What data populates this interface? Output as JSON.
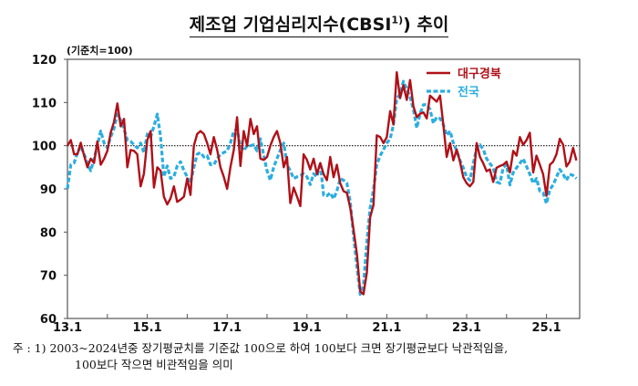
{
  "chart_data": {
    "type": "line",
    "title_main": "제조업 기업심리지수(CBSI",
    "title_sup": "1)",
    "title_close": ")",
    "title_tail": " 추이",
    "unit_label": "(기준치=100)",
    "ylim": [
      60,
      120
    ],
    "yticks": [
      "60",
      "70",
      "80",
      "90",
      "100",
      "110",
      "120"
    ],
    "xticks": [
      "13.1",
      "15.1",
      "17.1",
      "19.1",
      "21.1",
      "23.1",
      "25.1"
    ],
    "x_start": "2013.1",
    "x_end": "2025.10",
    "reference_line": 100,
    "legend_position": "top-right",
    "series": [
      {
        "name": "대구경북",
        "color": "#b01018",
        "style": "solid",
        "values": [
          100,
          101.3,
          98,
          98,
          100.7,
          97.7,
          95,
          97,
          96,
          101,
          95.6,
          97,
          98.8,
          103,
          105.5,
          109.8,
          104.5,
          106.2,
          95,
          99,
          98.8,
          98,
          90.6,
          93.5,
          101.3,
          103.4,
          90.3,
          95,
          94.2,
          88.2,
          86.4,
          87.8,
          90.6,
          87,
          87.5,
          88.2,
          92.4,
          88.6,
          100,
          102.7,
          103.4,
          102.7,
          100.6,
          98,
          102,
          99,
          95,
          92.8,
          90,
          95,
          99,
          106.6,
          95.3,
          103.4,
          100,
          106.2,
          102.7,
          104.5,
          97,
          96.7,
          97.4,
          100,
          102,
          103.4,
          100.6,
          95,
          97.4,
          86.7,
          90.3,
          88.2,
          86,
          98,
          96.7,
          94.5,
          97,
          93.4,
          96,
          93.4,
          92,
          97.4,
          92.7,
          95.6,
          91.3,
          89.5,
          89.1,
          85.6,
          80.6,
          74.9,
          66.3,
          65.6,
          70.6,
          83.4,
          86.3,
          102.4,
          102,
          100.6,
          102,
          108,
          104.9,
          117,
          111,
          114,
          110.6,
          115.2,
          109.1,
          106.6,
          107.4,
          107.7,
          106.3,
          111.6,
          110.9,
          110.2,
          111.6,
          104.9,
          97.4,
          100.6,
          96.6,
          99.1,
          96.3,
          92.7,
          91.3,
          90.6,
          91.6,
          100.6,
          97.4,
          95.9,
          94.1,
          94.5,
          91.6,
          94.9,
          95.3,
          95.6,
          96.3,
          93.8,
          98.8,
          97.7,
          102,
          100.2,
          101.3,
          103,
          93.8,
          97.7,
          95.6,
          93.4,
          88.4,
          95.6,
          96.3,
          98,
          101.6,
          100.2,
          95.2,
          96.3,
          99.5,
          96.6
        ]
      },
      {
        "name": "전국",
        "color": "#2aaee0",
        "style": "dashed",
        "values": [
          90,
          95.6,
          96,
          98.4,
          99.9,
          98,
          96,
          94.2,
          97,
          100,
          103.4,
          100.6,
          99.5,
          102,
          104,
          107.3,
          105.9,
          103.8,
          101.3,
          101,
          100.2,
          99.5,
          100.6,
          98.4,
          102.7,
          102,
          104.5,
          107.3,
          102,
          92.8,
          95.3,
          92.4,
          92.8,
          95.3,
          96.3,
          94.2,
          92.8,
          91.3,
          95,
          98,
          98.4,
          97.4,
          97.7,
          95.6,
          95.6,
          97,
          98,
          98.4,
          98.8,
          100.6,
          103.4,
          103.8,
          100,
          98.8,
          100,
          100,
          100.2,
          98.8,
          101.6,
          97.7,
          94.2,
          92,
          95,
          97,
          99,
          100.6,
          95.6,
          94.2,
          92.4,
          92.8,
          93.1,
          93.5,
          92.8,
          91,
          93.5,
          92.8,
          96,
          88.5,
          88.4,
          89.1,
          87.7,
          89.5,
          92.4,
          92,
          91.3,
          87,
          79.1,
          72,
          65.6,
          67.7,
          77.7,
          85.6,
          89.9,
          95.6,
          97.7,
          99.1,
          100.6,
          101.6,
          104.9,
          110.9,
          112,
          114.9,
          113.1,
          111.3,
          108.4,
          104.1,
          107.4,
          109.5,
          109.5,
          108.4,
          105.2,
          106.6,
          106.3,
          104.9,
          102.4,
          103.4,
          100.6,
          98.8,
          96.6,
          94.9,
          92.7,
          92,
          95.9,
          99.5,
          100.2,
          99.1,
          97,
          95.9,
          94.9,
          91.6,
          91.3,
          94.9,
          95.6,
          90.9,
          93.8,
          94.9,
          95.9,
          97,
          95.2,
          93.4,
          91.3,
          92.4,
          89.5,
          89.1,
          86.6,
          89.9,
          90.9,
          92.7,
          94.5,
          93.4,
          92,
          93.4,
          93.1,
          92.4
        ]
      }
    ]
  },
  "notes": {
    "line1": "주 : 1) 2003~2024년중 장기평균치를 기준값 100으로 하여 100보다 크면 장기평균보다 낙관적임을,",
    "line2": "100보다 작으면 비관적임을 의미"
  }
}
